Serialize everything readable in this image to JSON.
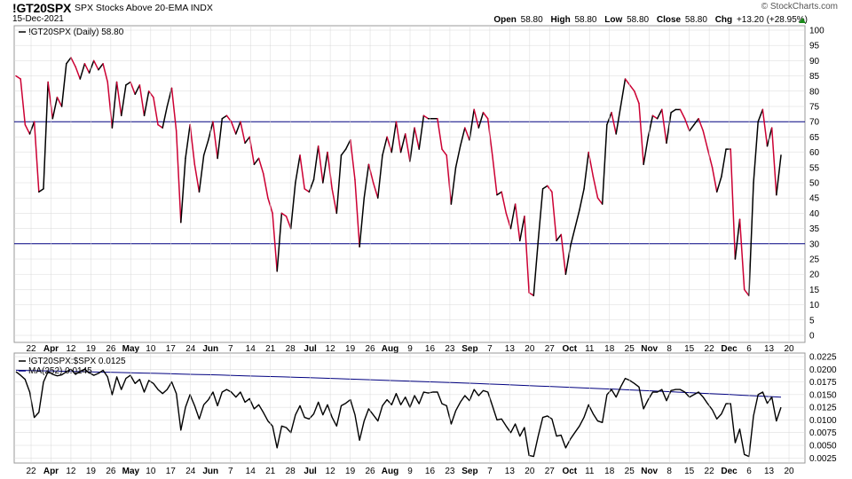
{
  "header": {
    "symbol": "!GT20SPX",
    "description": "SPX Stocks Above 20-EMA  INDX",
    "date": "15-Dec-2021",
    "brand": "© StockCharts.com",
    "open_label": "Open",
    "open": "58.80",
    "high_label": "High",
    "high": "58.80",
    "low_label": "Low",
    "low": "58.80",
    "close_label": "Close",
    "close": "58.80",
    "chg_label": "Chg",
    "chg": "+13.20 (+28.95%)"
  },
  "colors": {
    "up": "#000000",
    "down": "#cc0033",
    "ref_line": "#000080",
    "ma": "#000080",
    "grid": "#d8d8d8"
  },
  "chart_data": [
    {
      "type": "line",
      "title": "!GT20SPX (Daily) 58.80",
      "ylim": [
        0,
        100
      ],
      "yticks": [
        0,
        5,
        10,
        15,
        20,
        25,
        30,
        35,
        40,
        45,
        50,
        55,
        60,
        65,
        70,
        75,
        80,
        85,
        90,
        95,
        100
      ],
      "reference_lines": [
        70,
        30
      ],
      "x_tick_labels": [
        "22",
        "Apr",
        "12",
        "19",
        "26",
        "May",
        "10",
        "17",
        "24",
        "Jun",
        "7",
        "14",
        "21",
        "28",
        "Jul",
        "12",
        "19",
        "26",
        "Aug",
        "9",
        "16",
        "23",
        "Sep",
        "7",
        "13",
        "20",
        "27",
        "Oct",
        "11",
        "18",
        "25",
        "Nov",
        "8",
        "15",
        "22",
        "Dec",
        "6",
        "13",
        "20"
      ],
      "bold_tick_labels": [
        "Apr",
        "May",
        "Jun",
        "Jul",
        "Aug",
        "Sep",
        "Oct",
        "Nov",
        "Dec"
      ],
      "values": [
        85,
        84,
        69,
        66,
        70,
        47,
        48,
        83,
        71,
        78,
        75,
        89,
        91,
        88,
        84,
        89,
        86,
        90,
        87,
        89,
        83,
        68,
        83,
        72,
        82,
        83,
        79,
        82,
        72,
        80,
        78,
        69,
        68,
        75,
        81,
        67,
        37,
        58,
        69,
        56,
        47,
        59,
        64,
        70,
        58,
        71,
        72,
        70,
        66,
        70,
        63,
        65,
        56,
        58,
        53,
        45,
        40,
        21,
        40,
        39,
        35,
        50,
        59,
        48,
        47,
        51,
        62,
        50,
        60,
        48,
        40,
        59,
        61,
        64,
        51,
        29,
        45,
        56,
        50,
        45,
        59,
        65,
        60,
        70,
        60,
        66,
        57,
        68,
        61,
        72,
        71,
        71,
        71,
        61,
        59,
        43,
        55,
        62,
        68,
        64,
        74,
        68,
        73,
        71,
        59,
        46,
        47,
        40,
        35,
        43,
        31,
        39,
        14,
        13,
        31,
        48,
        49,
        47,
        31,
        33,
        20,
        29,
        35,
        41,
        48,
        60,
        52,
        45,
        43,
        69,
        73,
        66,
        75,
        84,
        82,
        80,
        76,
        56,
        65,
        72,
        71,
        74,
        63,
        73,
        74,
        74,
        71,
        67,
        69,
        71,
        67,
        61,
        55,
        47,
        52,
        61,
        61,
        25,
        38,
        15,
        13,
        50,
        70,
        74,
        62,
        68,
        46,
        59
      ]
    },
    {
      "type": "line",
      "series": [
        {
          "name": "!GT20SPX:$SPX 0.0125",
          "values": [
            0.0195,
            0.0188,
            0.018,
            0.0155,
            0.0105,
            0.0115,
            0.0175,
            0.0195,
            0.019,
            0.0187,
            0.0189,
            0.0195,
            0.02,
            0.019,
            0.0196,
            0.02,
            0.0193,
            0.0188,
            0.0192,
            0.0198,
            0.0185,
            0.015,
            0.0185,
            0.016,
            0.0182,
            0.0188,
            0.0172,
            0.018,
            0.0155,
            0.0178,
            0.0172,
            0.016,
            0.0152,
            0.016,
            0.0175,
            0.0152,
            0.008,
            0.0125,
            0.015,
            0.0128,
            0.0102,
            0.013,
            0.014,
            0.0155,
            0.0128,
            0.0155,
            0.016,
            0.0155,
            0.0145,
            0.0155,
            0.0135,
            0.0142,
            0.0122,
            0.013,
            0.0115,
            0.0098,
            0.0088,
            0.0045,
            0.0088,
            0.0085,
            0.0075,
            0.011,
            0.0128,
            0.0105,
            0.0102,
            0.0112,
            0.0135,
            0.011,
            0.013,
            0.0105,
            0.0088,
            0.0128,
            0.0133,
            0.014,
            0.011,
            0.006,
            0.0098,
            0.0122,
            0.011,
            0.0098,
            0.0128,
            0.014,
            0.013,
            0.0152,
            0.013,
            0.0145,
            0.0125,
            0.0148,
            0.0132,
            0.0155,
            0.0153,
            0.0155,
            0.0155,
            0.0132,
            0.0128,
            0.0092,
            0.0118,
            0.0135,
            0.0148,
            0.0138,
            0.016,
            0.0148,
            0.0158,
            0.0155,
            0.0128,
            0.01,
            0.0102,
            0.0088,
            0.0075,
            0.0092,
            0.0068,
            0.0085,
            0.003,
            0.0028,
            0.0068,
            0.0105,
            0.0108,
            0.0102,
            0.0068,
            0.007,
            0.0045,
            0.0062,
            0.0075,
            0.0088,
            0.0105,
            0.013,
            0.0112,
            0.0098,
            0.0095,
            0.015,
            0.016,
            0.0145,
            0.0165,
            0.0182,
            0.0178,
            0.0172,
            0.0165,
            0.0122,
            0.014,
            0.0155,
            0.0155,
            0.016,
            0.0138,
            0.0158,
            0.016,
            0.016,
            0.0155,
            0.0145,
            0.015,
            0.0155,
            0.0145,
            0.0132,
            0.012,
            0.0102,
            0.0112,
            0.0132,
            0.0132,
            0.0055,
            0.0082,
            0.0032,
            0.0028,
            0.0108,
            0.015,
            0.0155,
            0.0133,
            0.0145,
            0.0098,
            0.0125
          ]
        },
        {
          "name": "MA(252) 0.0145",
          "values": [
            0.0198,
            0.0145
          ]
        }
      ],
      "ylim": [
        0.0015,
        0.0232
      ],
      "yticks": [
        "0.0025",
        "0.0050",
        "0.0075",
        "0.0100",
        "0.0125",
        "0.0150",
        "0.0175",
        "0.0200",
        "0.0225"
      ],
      "x_tick_labels": [
        "22",
        "Apr",
        "12",
        "19",
        "26",
        "May",
        "10",
        "17",
        "24",
        "Jun",
        "7",
        "14",
        "21",
        "28",
        "Jul",
        "12",
        "19",
        "26",
        "Aug",
        "9",
        "16",
        "23",
        "Sep",
        "7",
        "13",
        "20",
        "27",
        "Oct",
        "11",
        "18",
        "25",
        "Nov",
        "8",
        "15",
        "22",
        "Dec",
        "6",
        "13",
        "20"
      ]
    }
  ]
}
